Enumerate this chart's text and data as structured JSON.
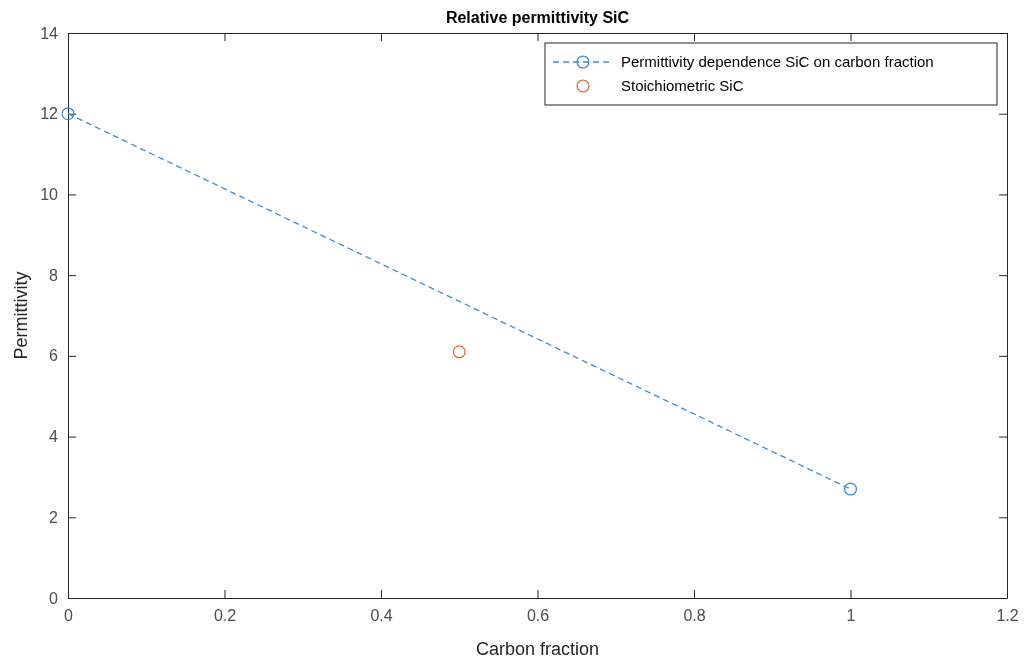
{
  "chart_data": {
    "type": "line",
    "title": "Relative permittivity SiC",
    "xlabel": "Carbon fraction",
    "ylabel": "Permittivity",
    "xlim": [
      0,
      1.2
    ],
    "xticks": [
      0,
      0.2,
      0.4,
      0.6,
      0.8,
      1,
      1.2
    ],
    "ylim": [
      0,
      14
    ],
    "yticks": [
      0,
      2,
      4,
      6,
      8,
      10,
      12,
      14
    ],
    "grid": false,
    "legend": "top right",
    "marker": "circle",
    "line_style": "dashed",
    "series": [
      {
        "name": "Permittivity dependence SiC on carbon fraction",
        "color": "#3a8fd0",
        "x": [
          0,
          1
        ],
        "values": [
          12,
          2.7
        ]
      },
      {
        "name": "Stoichiometric SiC",
        "type": "scatter",
        "color": "#e0703e",
        "x": [
          0.5
        ],
        "values": [
          6.1
        ]
      }
    ]
  }
}
